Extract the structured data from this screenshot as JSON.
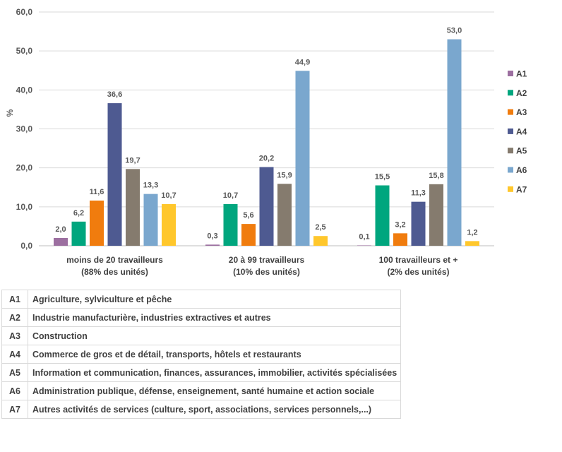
{
  "chart_data": {
    "type": "bar",
    "ylabel": "%",
    "ylim": [
      0,
      60
    ],
    "yticks": [
      "0,0",
      "10,0",
      "20,0",
      "30,0",
      "40,0",
      "50,0",
      "60,0"
    ],
    "grid": true,
    "legend_position": "right",
    "categories": [
      [
        "moins de 20 travailleurs",
        "(88% des unités)"
      ],
      [
        "20 à 99 travailleurs",
        "(10% des unités)"
      ],
      [
        "100 travailleurs et +",
        "(2% des unités)"
      ]
    ],
    "series": [
      {
        "name": "A1",
        "color": "#9C6FA0",
        "values": [
          2.0,
          0.3,
          0.1
        ],
        "labels": [
          "2,0",
          "0,3",
          "0,1"
        ]
      },
      {
        "name": "A2",
        "color": "#00A67E",
        "values": [
          6.2,
          10.7,
          15.5
        ],
        "labels": [
          "6,2",
          "10,7",
          "15,5"
        ]
      },
      {
        "name": "A3",
        "color": "#F07C0E",
        "values": [
          11.6,
          5.6,
          3.2
        ],
        "labels": [
          "11,6",
          "5,6",
          "3,2"
        ]
      },
      {
        "name": "A4",
        "color": "#4E5A91",
        "values": [
          36.6,
          20.2,
          11.3
        ],
        "labels": [
          "36,6",
          "20,2",
          "11,3"
        ]
      },
      {
        "name": "A5",
        "color": "#857B6E",
        "values": [
          19.7,
          15.9,
          15.8
        ],
        "labels": [
          "19,7",
          "15,9",
          "15,8"
        ]
      },
      {
        "name": "A6",
        "color": "#7AA7CE",
        "values": [
          13.3,
          44.9,
          53.0
        ],
        "labels": [
          "13,3",
          "44,9",
          "53,0"
        ]
      },
      {
        "name": "A7",
        "color": "#FFC72C",
        "values": [
          10.7,
          2.5,
          1.2
        ],
        "labels": [
          "10,7",
          "2,5",
          "1,2"
        ]
      }
    ]
  },
  "codes_table": [
    {
      "code": "A1",
      "desc": "Agriculture, sylviculture et pêche"
    },
    {
      "code": "A2",
      "desc": "Industrie manufacturière, industries extractives et autres"
    },
    {
      "code": "A3",
      "desc": "Construction"
    },
    {
      "code": "A4",
      "desc": "Commerce de gros et de détail, transports, hôtels et restaurants"
    },
    {
      "code": "A5",
      "desc": "Information et communication, finances, assurances, immobilier, activités spécialisées"
    },
    {
      "code": "A6",
      "desc": "Administration publique, défense, enseignement, santé humaine et action sociale"
    },
    {
      "code": "A7",
      "desc": "Autres activités de services (culture, sport, associations, services personnels,...)"
    }
  ]
}
